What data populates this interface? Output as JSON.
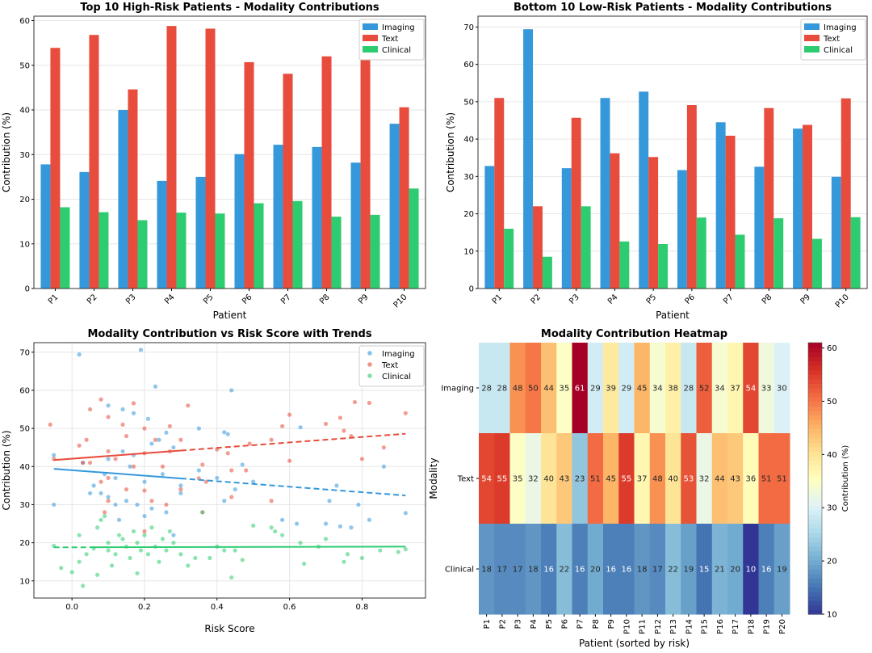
{
  "chart_data": [
    {
      "type": "bar",
      "title": "Top 10 High-Risk Patients - Modality Contributions",
      "xlabel": "Patient",
      "ylabel": "Contribution (%)",
      "ylim": [
        0,
        61
      ],
      "yticks": [
        0,
        10,
        20,
        30,
        40,
        50,
        60
      ],
      "grid": true,
      "legend": "top-right",
      "categories": [
        "P1",
        "P2",
        "P3",
        "P4",
        "P5",
        "P6",
        "P7",
        "P8",
        "P9",
        "P10"
      ],
      "series": [
        {
          "name": "Imaging",
          "color": "#3498db",
          "values": [
            27.8,
            26.1,
            40.0,
            24.1,
            25.0,
            30.1,
            32.2,
            31.7,
            28.2,
            36.9
          ]
        },
        {
          "name": "Text",
          "color": "#e74c3c",
          "values": [
            53.9,
            56.8,
            44.6,
            58.8,
            58.2,
            50.7,
            48.1,
            52.0,
            55.2,
            40.6
          ]
        },
        {
          "name": "Clinical",
          "color": "#2ecc71",
          "values": [
            18.2,
            17.1,
            15.3,
            17.0,
            16.8,
            19.1,
            19.6,
            16.1,
            16.5,
            22.4
          ]
        }
      ]
    },
    {
      "type": "bar",
      "title": "Bottom 10 Low-Risk Patients - Modality Contributions",
      "xlabel": "Patient",
      "ylabel": "Contribution (%)",
      "ylim": [
        0,
        72.9
      ],
      "yticks": [
        0,
        10,
        20,
        30,
        40,
        50,
        60,
        70
      ],
      "grid": true,
      "legend": "top-right",
      "categories": [
        "P1",
        "P2",
        "P3",
        "P4",
        "P5",
        "P6",
        "P7",
        "P8",
        "P9",
        "P10"
      ],
      "series": [
        {
          "name": "Imaging",
          "color": "#3498db",
          "values": [
            32.8,
            69.4,
            32.2,
            51.0,
            52.7,
            31.7,
            44.5,
            32.6,
            42.8,
            29.9
          ]
        },
        {
          "name": "Text",
          "color": "#e74c3c",
          "values": [
            51.0,
            22.0,
            45.7,
            36.2,
            35.2,
            49.1,
            40.9,
            48.3,
            43.8,
            50.9
          ]
        },
        {
          "name": "Clinical",
          "color": "#2ecc71",
          "values": [
            16.0,
            8.5,
            22.0,
            12.6,
            11.9,
            19.0,
            14.4,
            18.8,
            13.3,
            19.1
          ]
        }
      ]
    },
    {
      "type": "scatter",
      "title": "Modality Contribution vs Risk Score with Trends",
      "xlabel": "Risk Score",
      "ylabel": "Contribution (%)",
      "xlim": [
        -0.105,
        0.975
      ],
      "ylim": [
        5.5,
        72.5
      ],
      "xticks": [
        0.0,
        0.2,
        0.4,
        0.6,
        0.8
      ],
      "yticks": [
        10,
        20,
        30,
        40,
        50,
        60,
        70
      ],
      "grid": true,
      "legend": "top-right",
      "series": [
        {
          "name": "Imaging",
          "color": "#3498db",
          "trend": [
            [
              -0.05,
              39.4
            ],
            [
              0.92,
              32.4
            ]
          ],
          "points": [
            [
              0.02,
              69.4
            ],
            [
              0.19,
              70.6
            ],
            [
              0.23,
              61
            ],
            [
              0.44,
              60
            ],
            [
              0.1,
              56
            ],
            [
              0.14,
              55
            ],
            [
              0.17,
              54
            ],
            [
              0.21,
              52.5
            ],
            [
              0.35,
              50
            ],
            [
              0.63,
              50.3
            ],
            [
              0.42,
              49
            ],
            [
              0.43,
              48.5
            ],
            [
              0.26,
              48.9
            ],
            [
              0.24,
              47
            ],
            [
              0.22,
              46
            ],
            [
              0.28,
              45
            ],
            [
              -0.05,
              43
            ],
            [
              0.03,
              41
            ],
            [
              0.1,
              42
            ],
            [
              0.14,
              44
            ],
            [
              0.17,
              43
            ],
            [
              0.47,
              40.5
            ],
            [
              0.86,
              40
            ],
            [
              0.35,
              39
            ],
            [
              0.09,
              38
            ],
            [
              0.12,
              37
            ],
            [
              0.2,
              36
            ],
            [
              0.25,
              38
            ],
            [
              0.3,
              35
            ],
            [
              0.4,
              37
            ],
            [
              0.45,
              34
            ],
            [
              0.73,
              35
            ],
            [
              0.05,
              33
            ],
            [
              0.1,
              32
            ],
            [
              0.15,
              31
            ],
            [
              0.18,
              30
            ],
            [
              0.22,
              29
            ],
            [
              0.3,
              33
            ],
            [
              0.5,
              36
            ],
            [
              0.42,
              31
            ],
            [
              0.71,
              31
            ],
            [
              0.79,
              30
            ],
            [
              -0.05,
              30
            ],
            [
              0.2,
              27
            ],
            [
              0.13,
              26
            ],
            [
              0.26,
              28
            ],
            [
              0.58,
              26
            ],
            [
              0.62,
              25
            ],
            [
              0.7,
              25
            ],
            [
              0.82,
              26
            ],
            [
              0.92,
              27.8
            ],
            [
              0.28,
              22
            ],
            [
              0.74,
              24.3
            ],
            [
              0.77,
              24
            ],
            [
              0.08,
              33
            ],
            [
              0.06,
              35
            ],
            [
              0.16,
              40
            ],
            [
              0.12,
              30
            ]
          ]
        },
        {
          "name": "Text",
          "color": "#e74c3c",
          "trend": [
            [
              -0.05,
              41.7
            ],
            [
              0.92,
              48.6
            ]
          ],
          "points": [
            [
              0.08,
              57.6
            ],
            [
              0.17,
              56.6
            ],
            [
              0.32,
              56
            ],
            [
              0.27,
              50.6
            ],
            [
              0.6,
              53.6
            ],
            [
              0.78,
              56.9
            ],
            [
              0.82,
              56.7
            ],
            [
              0.92,
              54
            ],
            [
              0.05,
              55
            ],
            [
              0.1,
              53
            ],
            [
              0.14,
              51
            ],
            [
              -0.06,
              51
            ],
            [
              0.2,
              50
            ],
            [
              0.74,
              52.8
            ],
            [
              0.58,
              50.6
            ],
            [
              0.7,
              51.2
            ],
            [
              0.15,
              48
            ],
            [
              0.23,
              47
            ],
            [
              0.04,
              47
            ],
            [
              0.02,
              45.5
            ],
            [
              0.3,
              47
            ],
            [
              0.55,
              47
            ],
            [
              0.77,
              48
            ],
            [
              0.75,
              49.4
            ],
            [
              0.49,
              46
            ],
            [
              0.1,
              44
            ],
            [
              0.2,
              43.5
            ],
            [
              0.27,
              44
            ],
            [
              0.4,
              44.5
            ],
            [
              0.43,
              43.5
            ],
            [
              -0.05,
              42
            ],
            [
              0.05,
              41
            ],
            [
              0.12,
              42
            ],
            [
              0.17,
              40
            ],
            [
              0.25,
              40
            ],
            [
              0.36,
              40.5
            ],
            [
              0.8,
              42
            ],
            [
              0.86,
              45
            ],
            [
              0.6,
              41.5
            ],
            [
              0.44,
              39
            ],
            [
              0.48,
              39
            ],
            [
              0.08,
              36
            ],
            [
              0.1,
              37
            ],
            [
              0.15,
              34
            ],
            [
              0.2,
              33.7
            ],
            [
              0.3,
              34
            ],
            [
              0.37,
              36
            ],
            [
              0.44,
              32
            ],
            [
              0.55,
              31
            ],
            [
              0.36,
              28
            ],
            [
              0.1,
              31
            ],
            [
              0.09,
              28
            ],
            [
              0.22,
              31
            ],
            [
              0.26,
              30
            ],
            [
              0.2,
              23
            ],
            [
              0.03,
              41
            ],
            [
              0.35,
              36.9
            ]
          ]
        },
        {
          "name": "Clinical",
          "color": "#2ecc71",
          "trend": [
            [
              -0.05,
              18.8
            ],
            [
              0.92,
              19.0
            ]
          ],
          "points": [
            [
              -0.05,
              19.2
            ],
            [
              -0.03,
              13.4
            ],
            [
              0.0,
              12.3
            ],
            [
              0.02,
              15
            ],
            [
              0.02,
              22
            ],
            [
              0.04,
              17
            ],
            [
              0.06,
              18.5
            ],
            [
              0.07,
              24
            ],
            [
              0.08,
              26
            ],
            [
              0.09,
              27
            ],
            [
              0.1,
              20
            ],
            [
              0.1,
              18
            ],
            [
              0.11,
              14
            ],
            [
              0.12,
              17
            ],
            [
              0.13,
              22
            ],
            [
              0.14,
              21
            ],
            [
              0.15,
              19
            ],
            [
              0.16,
              16
            ],
            [
              0.17,
              23
            ],
            [
              0.18,
              20
            ],
            [
              0.19,
              18
            ],
            [
              0.2,
              22
            ],
            [
              0.21,
              17
            ],
            [
              0.22,
              24
            ],
            [
              0.23,
              19
            ],
            [
              0.24,
              15
            ],
            [
              0.25,
              21
            ],
            [
              0.26,
              18
            ],
            [
              0.27,
              23
            ],
            [
              0.28,
              20
            ],
            [
              0.3,
              17
            ],
            [
              0.32,
              14
            ],
            [
              0.34,
              16
            ],
            [
              0.36,
              28
            ],
            [
              0.38,
              16
            ],
            [
              0.4,
              19
            ],
            [
              0.42,
              18
            ],
            [
              0.44,
              10.9
            ],
            [
              0.45,
              18
            ],
            [
              0.47,
              15.5
            ],
            [
              0.5,
              24.5
            ],
            [
              0.55,
              24
            ],
            [
              0.56,
              23
            ],
            [
              0.58,
              22
            ],
            [
              0.63,
              20
            ],
            [
              0.64,
              14.5
            ],
            [
              0.68,
              19
            ],
            [
              0.7,
              21
            ],
            [
              0.75,
              15
            ],
            [
              0.8,
              16
            ],
            [
              0.85,
              18
            ],
            [
              0.92,
              18.3
            ],
            [
              0.03,
              8.7
            ],
            [
              0.07,
              11.6
            ],
            [
              0.18,
              12
            ],
            [
              0.9,
              17.6
            ],
            [
              0.76,
              17
            ]
          ]
        }
      ]
    },
    {
      "type": "heatmap",
      "title": "Modality Contribution Heatmap",
      "xlabel": "Patient (sorted by risk)",
      "ylabel": "Modality",
      "colormap": "RdYlBu_r",
      "vmin": 10,
      "vmax": 61,
      "colorbar": {
        "label": "Contribution (%)",
        "ticks": [
          10,
          20,
          30,
          40,
          50,
          60
        ]
      },
      "rows": [
        "Imaging",
        "Text",
        "Clinical"
      ],
      "columns": [
        "P1",
        "P2",
        "P3",
        "P4",
        "P5",
        "P6",
        "P7",
        "P8",
        "P9",
        "P10",
        "P11",
        "P12",
        "P13",
        "P14",
        "P15",
        "P16",
        "P17",
        "P18",
        "P19",
        "P20"
      ],
      "values": [
        [
          28,
          28,
          48,
          50,
          44,
          35,
          61,
          29,
          39,
          29,
          45,
          34,
          38,
          28,
          52,
          34,
          37,
          54,
          33,
          30
        ],
        [
          54,
          55,
          35,
          32,
          40,
          43,
          23,
          51,
          45,
          55,
          37,
          48,
          40,
          53,
          32,
          44,
          43,
          36,
          51,
          51
        ],
        [
          18,
          17,
          17,
          18,
          16,
          22,
          16,
          20,
          16,
          16,
          18,
          17,
          22,
          19,
          15,
          21,
          20,
          10,
          16,
          19
        ]
      ]
    }
  ]
}
